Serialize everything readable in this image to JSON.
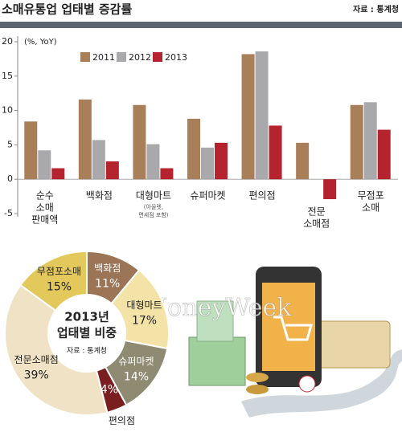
{
  "chart_data": [
    {
      "type": "bar",
      "title": "소매유통업 업태별 증감률",
      "source": "자료 : 통계청",
      "unit_label": "(%, YoY)",
      "categories": [
        [
          "순수",
          "소매",
          "판매액"
        ],
        [
          "백화점"
        ],
        [
          "대형마트"
        ],
        [
          "슈퍼마켓"
        ],
        [
          "편의점"
        ],
        [
          "전문",
          "소매점"
        ],
        [
          "무점포",
          "소매"
        ]
      ],
      "annotation": {
        "category": 2,
        "lines": [
          "(아울렛,",
          "면세점 포함)"
        ]
      },
      "series": [
        {
          "name": "2011",
          "color": "#a97f5a",
          "values": [
            8.4,
            11.6,
            10.8,
            8.8,
            18.2,
            5.3,
            10.8
          ]
        },
        {
          "name": "2012",
          "color": "#a9a9ab",
          "values": [
            4.2,
            5.7,
            5.1,
            4.6,
            18.6,
            0,
            11.2
          ]
        },
        {
          "name": "2013",
          "color": "#b5232f",
          "values": [
            1.6,
            2.6,
            1.6,
            5.3,
            7.8,
            -2.9,
            7.2
          ]
        }
      ],
      "ylim": [
        -5,
        20
      ],
      "yticks": [
        -5,
        0,
        5,
        10,
        15,
        20
      ],
      "grid": false
    },
    {
      "type": "pie",
      "center_label": [
        "2013년",
        "업태별 비중"
      ],
      "source": "자료 : 통계청",
      "categories": [
        "백화점",
        "대형마트",
        "슈퍼마켓",
        "편의점",
        "전문소매점",
        "무점포소매"
      ],
      "values": [
        11,
        17,
        14,
        4,
        39,
        15
      ],
      "value_labels": [
        "11%",
        "17%",
        "14%",
        "4%",
        "39%",
        "15%"
      ],
      "colors": [
        "#9b7556",
        "#f3e3a6",
        "#8f8a72",
        "#7a1f1f",
        "#efe2c5",
        "#e3c85b"
      ],
      "watermark": "MoneyWeek"
    }
  ]
}
